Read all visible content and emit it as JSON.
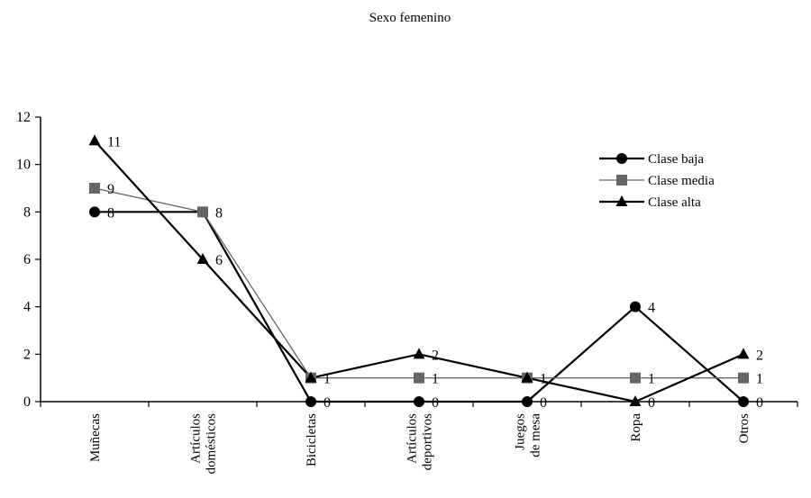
{
  "chart_data": {
    "type": "line",
    "title": "Sexo femenino",
    "xlabel": "",
    "ylabel": "",
    "ylim": [
      0,
      12
    ],
    "yticks": [
      "0",
      "2",
      "4",
      "6",
      "8",
      "10",
      "12"
    ],
    "grid": false,
    "legend_position": "top-right",
    "categories": [
      [
        "Muñecas"
      ],
      [
        "Artículos",
        "domésticos"
      ],
      [
        "Bicicletas"
      ],
      [
        "Artículos",
        "deportivos"
      ],
      [
        "Juegos",
        "de mesa"
      ],
      [
        "Ropa"
      ],
      [
        "Otros"
      ]
    ],
    "series": [
      {
        "name": "Clase baja",
        "marker": "circle",
        "color": "#000000",
        "values": [
          8,
          8,
          0,
          0,
          0,
          4,
          0
        ]
      },
      {
        "name": "Clase media",
        "marker": "square",
        "color": "#666666",
        "values": [
          9,
          8,
          1,
          1,
          1,
          1,
          1
        ]
      },
      {
        "name": "Clase alta",
        "marker": "triangle",
        "color": "#000000",
        "values": [
          11,
          6,
          1,
          2,
          1,
          0,
          2
        ]
      }
    ],
    "data_labels": [
      {
        "category": 0,
        "value": 11,
        "text": "11"
      },
      {
        "category": 0,
        "value": 9,
        "text": "9"
      },
      {
        "category": 0,
        "value": 8,
        "text": "8"
      },
      {
        "category": 1,
        "value": 8,
        "text": "8"
      },
      {
        "category": 1,
        "value": 6,
        "text": "6"
      },
      {
        "category": 2,
        "value": 1,
        "text": "1"
      },
      {
        "category": 2,
        "value": 0,
        "text": "0"
      },
      {
        "category": 3,
        "value": 2,
        "text": "2"
      },
      {
        "category": 3,
        "value": 1,
        "text": "1"
      },
      {
        "category": 3,
        "value": 0,
        "text": "0"
      },
      {
        "category": 4,
        "value": 1,
        "text": "1"
      },
      {
        "category": 4,
        "value": 0,
        "text": "0"
      },
      {
        "category": 5,
        "value": 4,
        "text": "4"
      },
      {
        "category": 5,
        "value": 1,
        "text": "1"
      },
      {
        "category": 5,
        "value": 0,
        "text": "0"
      },
      {
        "category": 6,
        "value": 2,
        "text": "2"
      },
      {
        "category": 6,
        "value": 1,
        "text": "1"
      },
      {
        "category": 6,
        "value": 0,
        "text": "0"
      }
    ]
  }
}
